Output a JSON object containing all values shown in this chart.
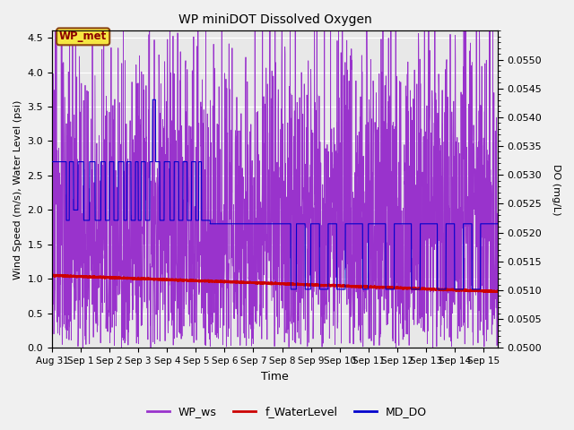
{
  "title": "WP miniDOT Dissolved Oxygen",
  "xlabel": "Time",
  "ylabel_left": "Wind Speed (m/s), Water Level (psi)",
  "ylabel_right": "DO (mg/L)",
  "annotation_text": "WP_met",
  "xlim_days": [
    0,
    15.5
  ],
  "ylim_left": [
    0,
    4.6
  ],
  "ylim_right": [
    0.05,
    0.0555
  ],
  "xtick_labels": [
    "Aug 31",
    "Sep 1",
    "Sep 2",
    "Sep 3",
    "Sep 4",
    "Sep 5",
    "Sep 6",
    "Sep 7",
    "Sep 8",
    "Sep 9",
    "Sep 10",
    "Sep 11",
    "Sep 12",
    "Sep 13",
    "Sep 14",
    "Sep 15"
  ],
  "xtick_positions": [
    0,
    1,
    2,
    3,
    4,
    5,
    6,
    7,
    8,
    9,
    10,
    11,
    12,
    13,
    14,
    15
  ],
  "ytick_left": [
    0.0,
    0.5,
    1.0,
    1.5,
    2.0,
    2.5,
    3.0,
    3.5,
    4.0,
    4.5
  ],
  "ytick_right": [
    0.05,
    0.0505,
    0.051,
    0.0515,
    0.052,
    0.0525,
    0.053,
    0.0535,
    0.054,
    0.0545,
    0.055
  ],
  "color_ws": "#9933CC",
  "color_wl": "#CC0000",
  "color_do": "#0000CC",
  "legend_labels": [
    "WP_ws",
    "f_WaterLevel",
    "MD_DO"
  ],
  "background_color": "#f0f0f0",
  "plot_bg_color": "#e8e8e8"
}
